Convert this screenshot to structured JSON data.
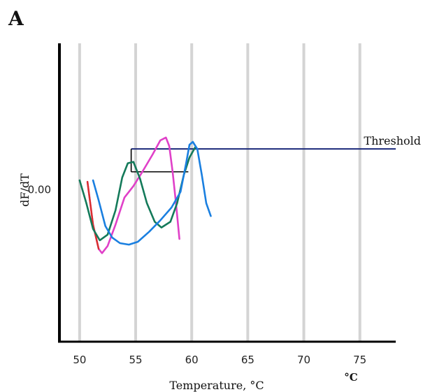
{
  "chart_data": {
    "type": "line",
    "panel_label": "A",
    "xlabel": "Temperature, °C",
    "x_unit_label": "°C",
    "ylabel": "dF/dT",
    "x_ticks": [
      50,
      55,
      60,
      65,
      70,
      75
    ],
    "y_tick_label": "0.00",
    "y_tick_value": 0,
    "xlim": [
      48.2,
      78.2
    ],
    "ylim": [
      -10.7,
      10.2
    ],
    "grid": "vertical",
    "threshold": {
      "label": "Threshold",
      "value": 2.8,
      "x_start": 54.6,
      "x_end": 78.2,
      "color": "#1c2a7a"
    },
    "threshold_step": {
      "y": 1.2,
      "x_start": 54.6,
      "x_end": 59.7,
      "color": "#000000"
    },
    "series": [
      {
        "color": "#e040c8",
        "points": [
          [
            50.7,
            0.5
          ],
          [
            51.2,
            -2.5
          ],
          [
            51.7,
            -4.2
          ],
          [
            52.0,
            -4.5
          ],
          [
            52.5,
            -4.0
          ],
          [
            53.2,
            -2.5
          ],
          [
            54.0,
            -0.6
          ],
          [
            54.8,
            0.2
          ],
          [
            55.6,
            1.2
          ],
          [
            56.5,
            2.4
          ],
          [
            57.2,
            3.4
          ],
          [
            57.7,
            3.6
          ],
          [
            58.0,
            3.0
          ],
          [
            58.3,
            1.2
          ],
          [
            58.6,
            -1.0
          ],
          [
            58.9,
            -3.5
          ]
        ],
        "highlight": {
          "x_start": 50.7,
          "x_end": 51.6,
          "color": "#d8302c"
        }
      },
      {
        "color": "#147a5a",
        "points": [
          [
            50.0,
            0.6
          ],
          [
            50.6,
            -1.0
          ],
          [
            51.2,
            -2.8
          ],
          [
            51.8,
            -3.6
          ],
          [
            52.5,
            -3.2
          ],
          [
            53.2,
            -1.5
          ],
          [
            53.8,
            0.8
          ],
          [
            54.3,
            1.8
          ],
          [
            54.8,
            1.9
          ],
          [
            55.4,
            0.7
          ],
          [
            56.0,
            -1.0
          ],
          [
            56.7,
            -2.3
          ],
          [
            57.3,
            -2.7
          ],
          [
            58.1,
            -2.3
          ],
          [
            58.7,
            -1.0
          ],
          [
            59.3,
            1.0
          ],
          [
            59.8,
            2.2
          ],
          [
            60.3,
            2.9
          ]
        ]
      },
      {
        "color": "#1a7fe0",
        "points": [
          [
            51.2,
            0.6
          ],
          [
            51.7,
            -0.8
          ],
          [
            52.3,
            -2.6
          ],
          [
            52.9,
            -3.4
          ],
          [
            53.6,
            -3.8
          ],
          [
            54.4,
            -3.9
          ],
          [
            55.2,
            -3.7
          ],
          [
            56.2,
            -3.0
          ],
          [
            57.2,
            -2.2
          ],
          [
            58.2,
            -1.3
          ],
          [
            59.0,
            -0.2
          ],
          [
            59.5,
            1.8
          ],
          [
            59.8,
            3.1
          ],
          [
            60.1,
            3.3
          ],
          [
            60.5,
            2.8
          ],
          [
            60.9,
            1.0
          ],
          [
            61.3,
            -1.0
          ],
          [
            61.7,
            -1.9
          ]
        ]
      }
    ]
  }
}
